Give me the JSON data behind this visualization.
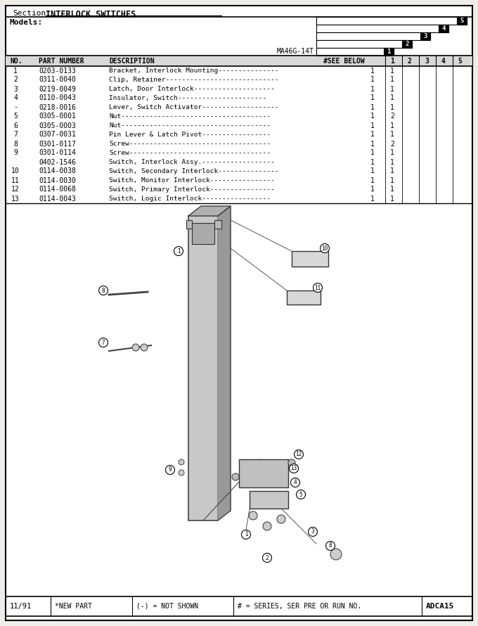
{
  "title_section": "Section:",
  "title_underline": "INTERLOCK SWITCHES",
  "models_label": "Models:",
  "model_name": "MA46G-14T",
  "date": "11/91",
  "new_part_note": "*NEW PART",
  "not_shown_note": "(-) = NOT SHOWN",
  "series_note": "# = SERIES, SER PRE OR RUN NO.",
  "doc_id": "ADCA15",
  "parts": [
    {
      "no": "1",
      "part": "0203-0133",
      "desc": "Bracket, Interlock Mounting",
      "see_below": "1",
      "col1": "1"
    },
    {
      "no": "2",
      "part": "0311-0040",
      "desc": "Clip, Retainer",
      "see_below": "1",
      "col1": "1"
    },
    {
      "no": "3",
      "part": "0219-0049",
      "desc": "Latch, Door Interlock",
      "see_below": "1",
      "col1": "1"
    },
    {
      "no": "4",
      "part": "0110-0043",
      "desc": "Insulator, Switch",
      "see_below": "1",
      "col1": "1"
    },
    {
      "no": "-",
      "part": "0218-0016",
      "desc": "Lever, Switch Activator",
      "see_below": "1",
      "col1": "1"
    },
    {
      "no": "5",
      "part": "0305-0001",
      "desc": "Nut",
      "see_below": "1",
      "col1": "2"
    },
    {
      "no": "6",
      "part": "0305-0003",
      "desc": "Nut",
      "see_below": "1",
      "col1": "1"
    },
    {
      "no": "7",
      "part": "0307-0031",
      "desc": "Pin Lever & Latch Pivot",
      "see_below": "1",
      "col1": "1"
    },
    {
      "no": "8",
      "part": "0301-0117",
      "desc": "Screw",
      "see_below": "1",
      "col1": "2"
    },
    {
      "no": "9",
      "part": "0301-0114",
      "desc": "Screw",
      "see_below": "1",
      "col1": "1"
    },
    {
      "no": "",
      "part": "0402-1546",
      "desc": "Switch, Interlock Assy.",
      "see_below": "1",
      "col1": "1"
    },
    {
      "no": "10",
      "part": "0114-0038",
      "desc": "Switch, Secondary Interlock",
      "see_below": "1",
      "col1": "1"
    },
    {
      "no": "11",
      "part": "0114-0030",
      "desc": "Switch, Monitor Interlock",
      "see_below": "1",
      "col1": "1"
    },
    {
      "no": "12",
      "part": "0114-0068",
      "desc": "Switch, Primary Interlock",
      "see_below": "1",
      "col1": "1"
    },
    {
      "no": "13",
      "part": "0114-0043",
      "desc": "Switch, Logic Interlock",
      "see_below": "1",
      "col1": "1"
    }
  ],
  "bg_color": "#f0ede8",
  "line_color": "#000000",
  "desc_dashes": {
    "Bracket, Interlock Mounting": 15,
    "Clip, Retainer": 28,
    "Latch, Door Interlock": 20,
    "Insulator, Switch": 22,
    "Lever, Switch Activator": 19,
    "Nut": 37,
    "Pin Lever & Latch Pivot": 17,
    "Screw": 35,
    "Switch, Interlock Assy.": 18,
    "Switch, Secondary Interlock": 15,
    "Switch, Monitor Interlock": 16,
    "Switch, Primary Interlock": 16,
    "Switch, Logic Interlock": 17
  }
}
